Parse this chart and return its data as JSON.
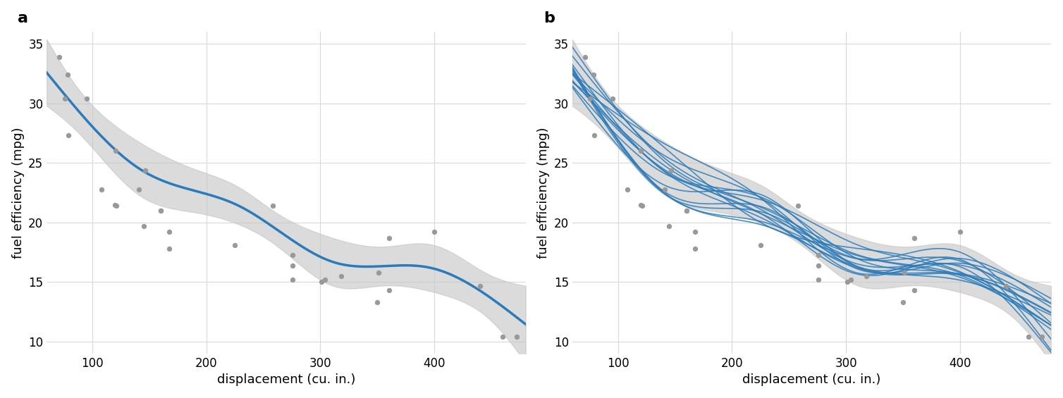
{
  "disp": [
    160.0,
    160.0,
    108.0,
    258.0,
    360.0,
    225.0,
    360.0,
    146.7,
    140.8,
    167.6,
    167.6,
    275.8,
    275.8,
    275.8,
    472.0,
    460.0,
    440.0,
    78.7,
    75.7,
    71.1,
    120.1,
    318.0,
    304.0,
    350.0,
    400.0,
    79.0,
    120.3,
    95.1,
    351.0,
    145.0,
    301.0,
    121.0
  ],
  "mpg": [
    21.0,
    21.0,
    22.8,
    21.4,
    18.7,
    18.1,
    14.3,
    24.4,
    22.8,
    19.2,
    17.8,
    16.4,
    17.3,
    15.2,
    10.4,
    10.4,
    14.7,
    32.4,
    30.4,
    33.9,
    21.5,
    15.5,
    15.2,
    13.3,
    19.2,
    27.3,
    26.0,
    30.4,
    15.8,
    19.7,
    15.0,
    21.4
  ],
  "dot_color": "#999999",
  "line_color": "#2b7bba",
  "band_color": "#c8c8c8",
  "band_alpha": 0.65,
  "xlabel": "displacement (cu. in.)",
  "ylabel": "fuel efficiency (mpg)",
  "xlim": [
    60,
    480
  ],
  "ylim": [
    9,
    36
  ],
  "xticks": [
    100,
    200,
    300,
    400
  ],
  "yticks": [
    10,
    15,
    20,
    25,
    30,
    35
  ],
  "n_posterior": 15,
  "random_seed": 42,
  "label_a": "a",
  "label_b": "b",
  "fig_width": 15.08,
  "fig_height": 5.65,
  "font_size": 13,
  "label_fontsize": 16,
  "n_knots": 5,
  "ci_level": 0.95
}
